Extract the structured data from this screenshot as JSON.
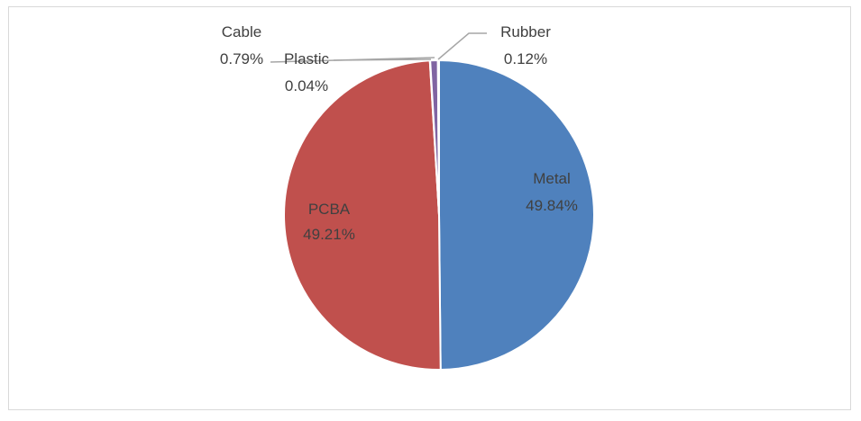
{
  "chart_data": {
    "type": "pie",
    "title": "",
    "slices": [
      {
        "label": "Metal",
        "value": 49.84,
        "percent_label": "49.84%",
        "color": "#4f81bd"
      },
      {
        "label": "PCBA",
        "value": 49.21,
        "percent_label": "49.21%",
        "color": "#c0504d"
      },
      {
        "label": "Plastic",
        "value": 0.04,
        "percent_label": "0.04%",
        "color": "#9bbb59"
      },
      {
        "label": "Cable",
        "value": 0.79,
        "percent_label": "0.79%",
        "color": "#8064a2"
      },
      {
        "label": "Rubber",
        "value": 0.12,
        "percent_label": "0.12%",
        "color": "#4bacc6"
      }
    ],
    "legend": "none",
    "label_color_inside": "#404040",
    "label_color_outside": "#404040",
    "leader_line_color": "#a6a6a6"
  }
}
